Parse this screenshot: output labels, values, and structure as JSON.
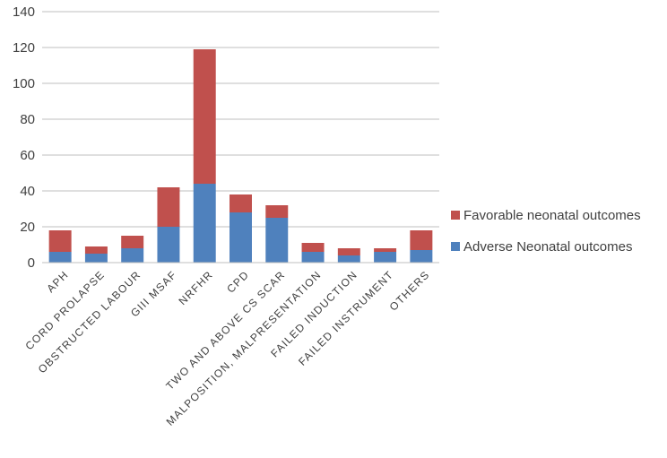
{
  "chart_data": {
    "type": "bar",
    "stacked": true,
    "categories": [
      "APH",
      "CORD PROLAPSE",
      "OBSTRUCTED LABOUR",
      "GIII MSAF",
      "NRFHR",
      "CPD",
      "TWO AND ABOVE CS SCAR",
      "MALPOSITION, MALPRESENTATION",
      "FAILED INDUCTION",
      "FAILED INSTRUMENT",
      "OTHERS"
    ],
    "series": [
      {
        "name": "Adverse Neonatal outcomes",
        "color": "#4f81bd",
        "values": [
          6,
          5,
          8,
          20,
          44,
          28,
          25,
          6,
          4,
          6,
          7
        ]
      },
      {
        "name": "Favorable neonatal outcomes",
        "color": "#c0504d",
        "values": [
          12,
          4,
          7,
          22,
          75,
          10,
          7,
          5,
          4,
          2,
          11
        ]
      }
    ],
    "ylim": [
      0,
      140
    ],
    "yticks": [
      0,
      20,
      40,
      60,
      80,
      100,
      120,
      140
    ],
    "grid": true,
    "legend": "right"
  }
}
